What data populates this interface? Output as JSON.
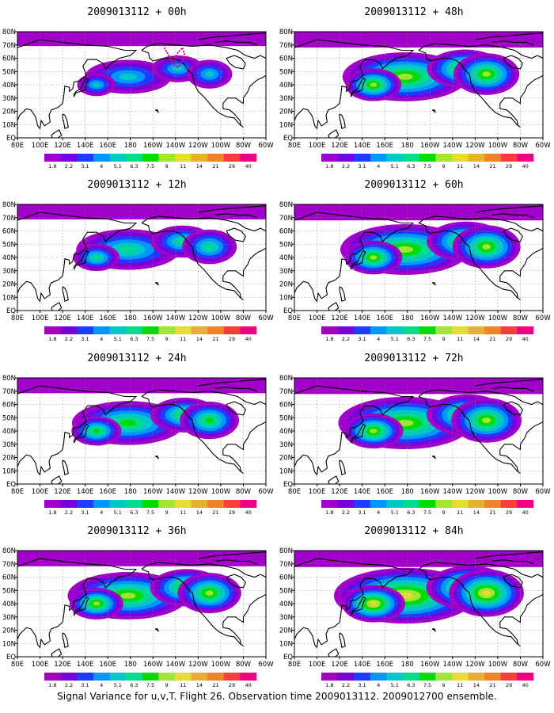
{
  "caption": "Signal Variance for u,v,T. Flight 26. Observation time 2009013112. 2009012700 ensemble.",
  "chart_data": {
    "type": "heatmap",
    "variable": "Signal Variance for u,v,T",
    "x_ticks": [
      "80E",
      "100E",
      "120E",
      "140E",
      "160E",
      "180",
      "160W",
      "140W",
      "120W",
      "100W",
      "80W",
      "60W"
    ],
    "y_ticks": [
      "EQ",
      "10N",
      "20N",
      "30N",
      "40N",
      "50N",
      "60N",
      "70N",
      "80N"
    ],
    "colorbar_levels": [
      "1.8",
      "2.2",
      "3.1",
      "4",
      "5.1",
      "6.3",
      "7.5",
      "9",
      "11",
      "14",
      "21",
      "29",
      "40"
    ],
    "colorbar_colors": [
      "#a000c8",
      "#7800dc",
      "#1e3cff",
      "#0096ff",
      "#00c8c8",
      "#00dc8c",
      "#00dc00",
      "#a0e632",
      "#e6dc32",
      "#e6af2d",
      "#f08228",
      "#fa3c3c",
      "#f00082"
    ],
    "panels": [
      {
        "title": "2009013112 + 00h",
        "forecast_hour": 0,
        "intensity": 0.35,
        "flight_track": true
      },
      {
        "title": "2009013112 + 12h",
        "forecast_hour": 12,
        "intensity": 0.55,
        "flight_track": false
      },
      {
        "title": "2009013112 + 24h",
        "forecast_hour": 24,
        "intensity": 0.65,
        "flight_track": false
      },
      {
        "title": "2009013112 + 36h",
        "forecast_hour": 36,
        "intensity": 0.75,
        "flight_track": false
      },
      {
        "title": "2009013112 + 48h",
        "forecast_hour": 48,
        "intensity": 0.8,
        "flight_track": false
      },
      {
        "title": "2009013112 + 60h",
        "forecast_hour": 60,
        "intensity": 0.85,
        "flight_track": false
      },
      {
        "title": "2009013112 + 72h",
        "forecast_hour": 72,
        "intensity": 0.9,
        "flight_track": false
      },
      {
        "title": "2009013112 + 84h",
        "forecast_hour": 84,
        "intensity": 1.0,
        "flight_track": false
      }
    ]
  }
}
